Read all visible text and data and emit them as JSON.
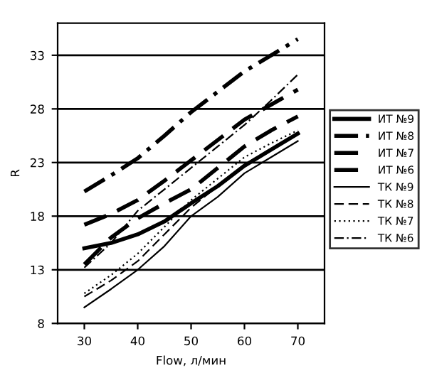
{
  "chart_data": {
    "type": "line",
    "xlabel": "Flow, л/мин",
    "ylabel": "R",
    "xlim": [
      25,
      75
    ],
    "ylim": [
      8,
      36
    ],
    "xticks": [
      30,
      40,
      50,
      60,
      70
    ],
    "yticks": [
      8,
      13,
      18,
      23,
      28,
      33
    ],
    "grid": "y",
    "legend": "right",
    "marker": "none",
    "x": [
      30,
      35,
      40,
      45,
      50,
      55,
      60,
      65,
      70
    ],
    "series": [
      {
        "name": "ИТ №9",
        "color": "#000000",
        "line_style": "solid",
        "values": [
          15.0,
          15.5,
          16.3,
          17.5,
          19.2,
          20.8,
          22.7,
          24.2,
          25.7
        ]
      },
      {
        "name": "ИТ №8",
        "color": "#000000",
        "line_style": "dashdot",
        "values": [
          20.3,
          21.8,
          23.4,
          25.5,
          27.7,
          29.6,
          31.5,
          33.0,
          34.5
        ]
      },
      {
        "name": "ИТ №7",
        "color": "#000000",
        "line_style": "dashed",
        "values": [
          17.2,
          18.2,
          19.5,
          21.3,
          23.2,
          25.1,
          27.0,
          28.4,
          29.8
        ]
      },
      {
        "name": "ИТ №6",
        "color": "#000000",
        "line_style": "dashed",
        "values": [
          13.5,
          16.0,
          17.8,
          19.2,
          20.5,
          22.5,
          24.5,
          26.0,
          27.3
        ]
      },
      {
        "name": "ТК №9",
        "color": "#000000",
        "line_style": "solid",
        "values": [
          9.5,
          11.2,
          13.0,
          15.2,
          18.0,
          19.8,
          22.0,
          23.5,
          25.0
        ]
      },
      {
        "name": "ТК №8",
        "color": "#000000",
        "line_style": "dashed",
        "values": [
          10.5,
          12.0,
          13.8,
          16.3,
          18.8,
          20.8,
          22.8,
          24.3,
          25.8
        ]
      },
      {
        "name": "ТК №7",
        "color": "#000000",
        "line_style": "dotted",
        "values": [
          10.8,
          12.5,
          14.5,
          17.0,
          19.5,
          21.5,
          23.5,
          24.8,
          26.0
        ]
      },
      {
        "name": "ТК №6",
        "color": "#000000",
        "line_style": "dashdot",
        "values": [
          13.2,
          15.5,
          18.5,
          20.5,
          22.5,
          24.5,
          26.5,
          28.8,
          31.2
        ]
      }
    ]
  }
}
